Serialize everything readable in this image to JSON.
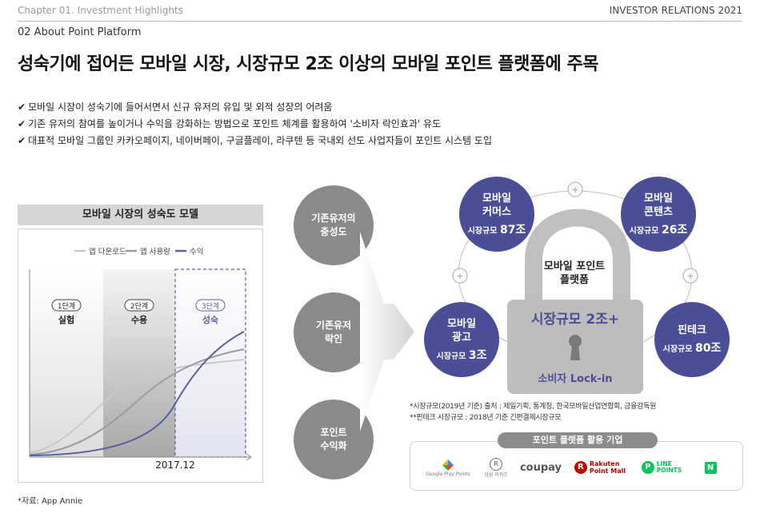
{
  "header": {
    "chapter": "Chapter 01. Investment Highlights",
    "right": "INVESTOR RELATIONS 2021",
    "section": "02   About Point Platform",
    "title": "성숙기에 접어든 모바일 시장, 시장규모 2조 이상의 모바일 포인트 플랫폼에 주목"
  },
  "bullets": [
    "모바일 시장이 성숙기에 들어서면서 신규 유저의 유입 및 외적 성장의 어려움",
    "기존 유저의 참여를 높이거나 수익을 강화하는 방법으로 포인트 체계를 활용하여 '소비자 락인효과' 유도",
    "대표적 모바일 그룹인 카카오페이지, 네이버페이, 구글플레이, 라쿠텐 등 국내외 선도 사업자들이 포인트 시스템 도입"
  ],
  "chart_data": {
    "type": "line",
    "title": "모바일 시장의 성숙도 모델",
    "legend": [
      "앱 다운로드",
      "앱 사용량",
      "수익"
    ],
    "legend_position": "top",
    "stages": [
      {
        "tag": "1단계",
        "name": "실험"
      },
      {
        "tag": "2단계",
        "name": "수용"
      },
      {
        "tag": "3단계",
        "name": "성숙"
      }
    ],
    "x_label": "2017.12",
    "series_colors": [
      "#c8c8c8",
      "#9b9b9b",
      "#5b5fa3"
    ]
  },
  "left_circles": [
    [
      "기존유저의",
      "충성도"
    ],
    [
      "기존유저",
      "락인"
    ],
    [
      "포인트",
      "수익화"
    ]
  ],
  "lock": {
    "top_label": [
      "모바일 포인트",
      "플랫폼"
    ],
    "market": "시장규모 2조+",
    "lockin": "소비자 Lock-in"
  },
  "segments": [
    {
      "name": [
        "모바일",
        "커머스"
      ],
      "size_prefix": "시장규모",
      "size": "87조"
    },
    {
      "name": [
        "모바일",
        "콘텐츠"
      ],
      "size_prefix": "시장규모",
      "size": "26조"
    },
    {
      "name": [
        "모바일",
        "광고"
      ],
      "size_prefix": "시장규모",
      "size": "3조"
    },
    {
      "name": [
        "핀테크"
      ],
      "size_prefix": "시장규모",
      "size": "80조"
    }
  ],
  "notes": [
    "*시장규모(2019년 기준) 출처 : 제일기획, 통계청, 한국모바일산업연합회, 금융감독원",
    "**핀테크 시장규모 : 2018년 기준 긴편결제시장규모"
  ],
  "companies": {
    "title": "포인트 플랫폼 활용 기업",
    "logos": [
      {
        "name": "google-play-points",
        "text": "Google Play Points"
      },
      {
        "name": "samsung-rewards",
        "text": "삼성 리워즈"
      },
      {
        "name": "coupay",
        "text": "coupay"
      },
      {
        "name": "rakuten-point-mall",
        "text": [
          "Rakuten",
          "Point Mall"
        ]
      },
      {
        "name": "line-points",
        "text": [
          "LINE",
          "POINTS"
        ]
      },
      {
        "name": "naver-n",
        "text": "N"
      }
    ]
  },
  "source": "*자료: App Annie"
}
